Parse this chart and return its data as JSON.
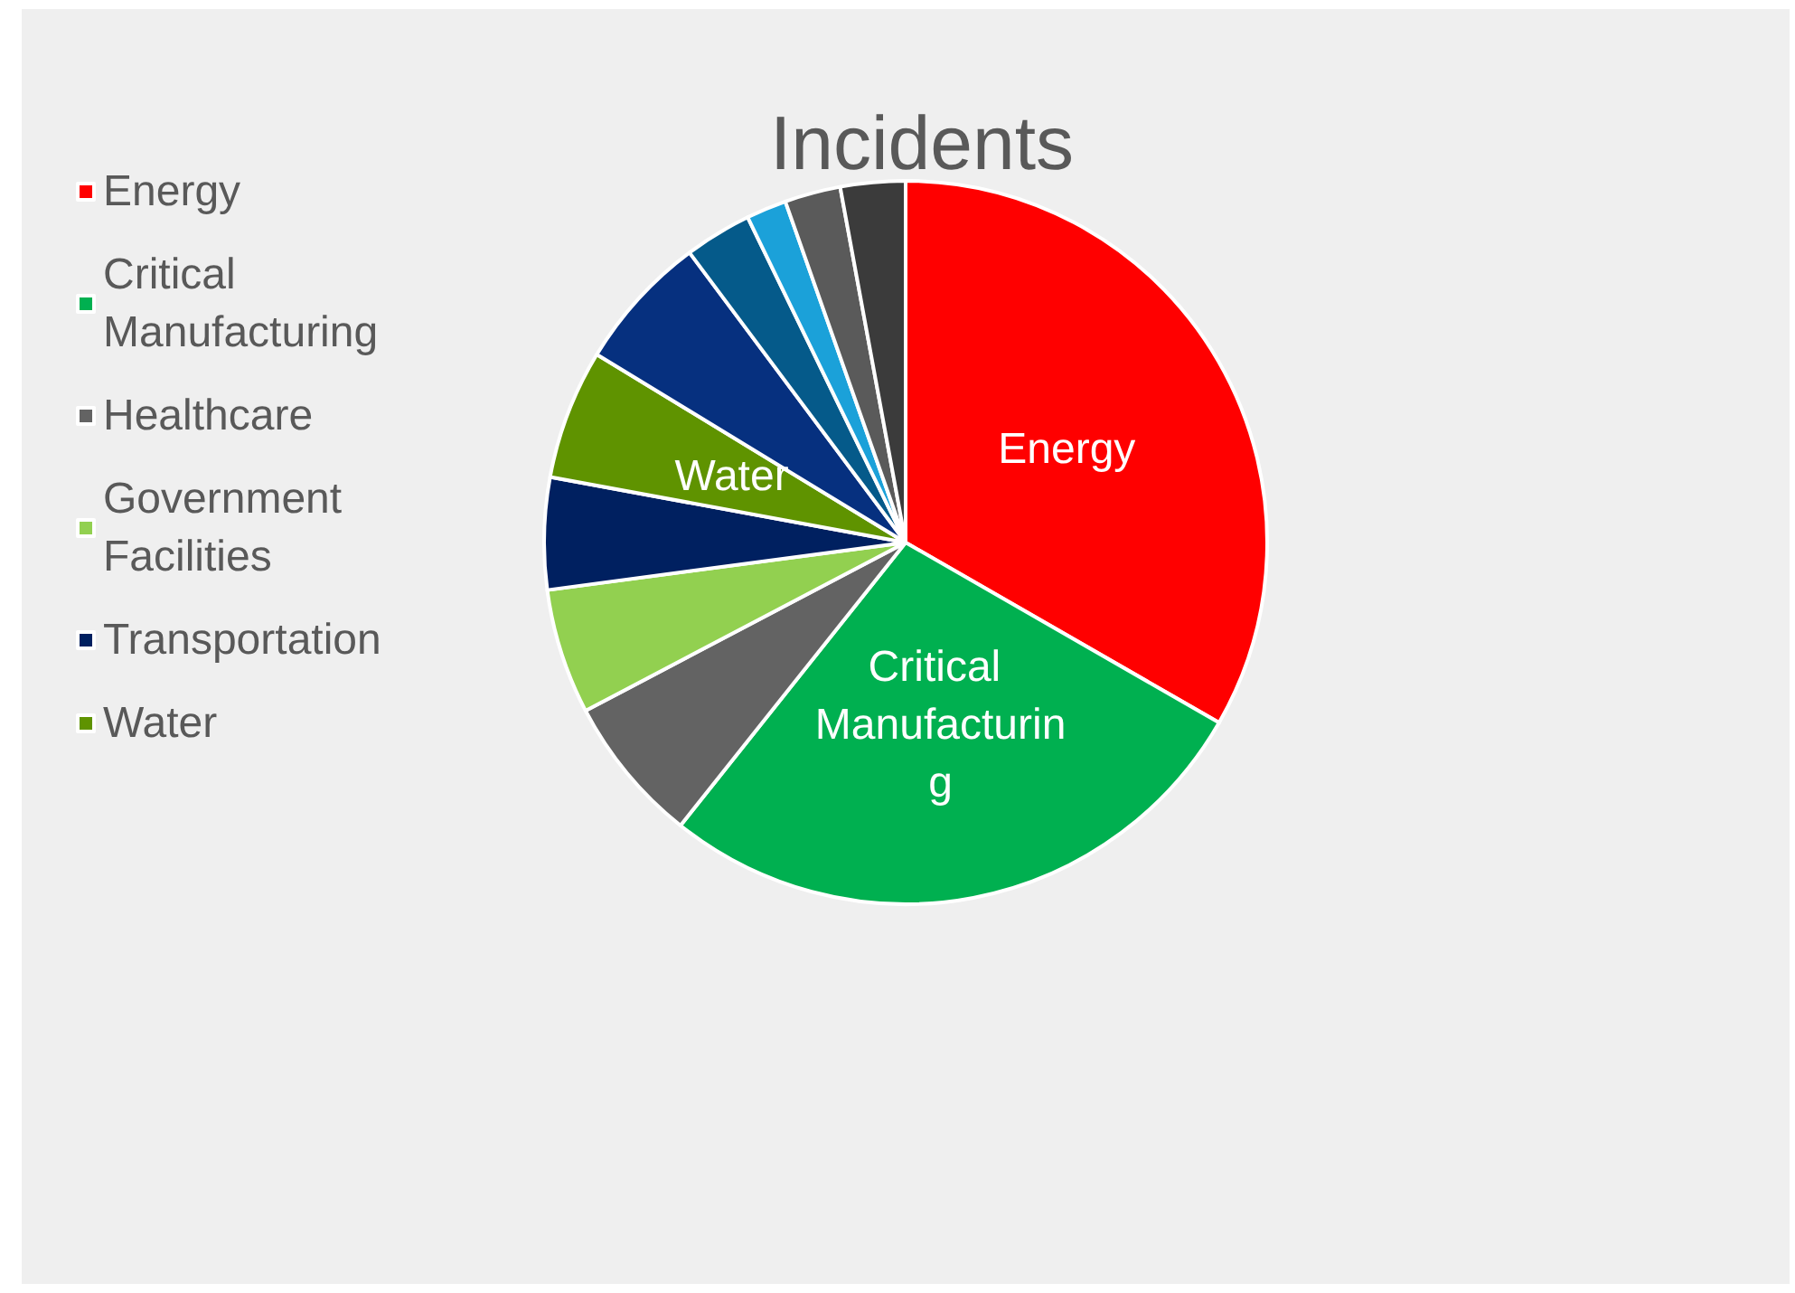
{
  "chart_data": {
    "type": "pie",
    "title": "Incidents",
    "categories": [
      "Energy",
      "Critical Manufacturing",
      "Healthcare",
      "Government Facilities",
      "Transportation",
      "Water",
      null,
      null,
      null,
      null,
      null
    ],
    "values": [
      33.3,
      27.4,
      6.6,
      5.6,
      5.0,
      5.8,
      6.1,
      3.0,
      1.8,
      2.5,
      2.9
    ],
    "colors": [
      "#ff0000",
      "#00b050",
      "#636363",
      "#92d050",
      "#002060",
      "#5f9300",
      "#06307f",
      "#055a8a",
      "#1ba1d9",
      "#5a5a5a",
      "#3b3b3b"
    ],
    "legend": "left"
  }
}
